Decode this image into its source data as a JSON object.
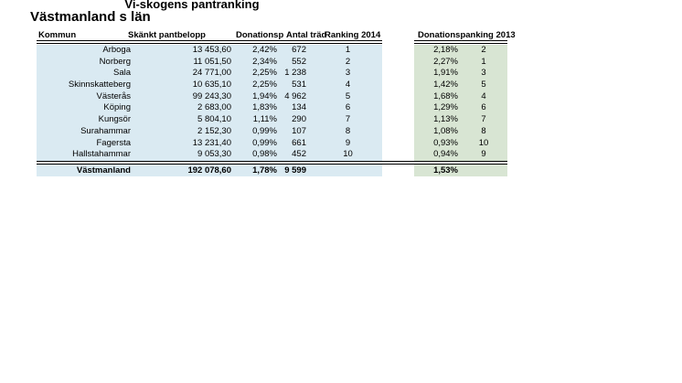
{
  "title": "Vi-skogens pantranking",
  "subtitle": "Västmanland s län",
  "left_table": {
    "headers": {
      "kommun": "Kommun",
      "amount": "Skänkt pantbelopp",
      "percent": "Donationsp",
      "trees": "Antal träd",
      "ranking": "Ranking 2014"
    },
    "rows": [
      {
        "kommun": "Arboga",
        "amount": "13 453,60",
        "percent": "2,42%",
        "trees": "672",
        "rank": "1"
      },
      {
        "kommun": "Norberg",
        "amount": "11 051,50",
        "percent": "2,34%",
        "trees": "552",
        "rank": "2"
      },
      {
        "kommun": "Sala",
        "amount": "24 771,00",
        "percent": "2,25%",
        "trees": "1 238",
        "rank": "3"
      },
      {
        "kommun": "Skinnskatteberg",
        "amount": "10 635,10",
        "percent": "2,25%",
        "trees": "531",
        "rank": "4"
      },
      {
        "kommun": "Västerås",
        "amount": "99 243,30",
        "percent": "1,94%",
        "trees": "4 962",
        "rank": "5"
      },
      {
        "kommun": "Köping",
        "amount": "2 683,00",
        "percent": "1,83%",
        "trees": "134",
        "rank": "6"
      },
      {
        "kommun": "Kungsör",
        "amount": "5 804,10",
        "percent": "1,11%",
        "trees": "290",
        "rank": "7"
      },
      {
        "kommun": "Surahammar",
        "amount": "2 152,30",
        "percent": "0,99%",
        "trees": "107",
        "rank": "8"
      },
      {
        "kommun": "Fagersta",
        "amount": "13 231,40",
        "percent": "0,99%",
        "trees": "661",
        "rank": "9"
      },
      {
        "kommun": "Hallstahammar",
        "amount": "9 053,30",
        "percent": "0,98%",
        "trees": "452",
        "rank": "10"
      }
    ],
    "total": {
      "kommun": "Västmanland",
      "amount": "192 078,60",
      "percent": "1,78%",
      "trees": "9 599",
      "rank": ""
    }
  },
  "right_table": {
    "header": "Donationspanking 2013",
    "rows": [
      {
        "percent": "2,18%",
        "rank": "2"
      },
      {
        "percent": "2,27%",
        "rank": "1"
      },
      {
        "percent": "1,91%",
        "rank": "3"
      },
      {
        "percent": "1,42%",
        "rank": "5"
      },
      {
        "percent": "1,68%",
        "rank": "4"
      },
      {
        "percent": "1,29%",
        "rank": "6"
      },
      {
        "percent": "1,13%",
        "rank": "7"
      },
      {
        "percent": "1,08%",
        "rank": "8"
      },
      {
        "percent": "0,93%",
        "rank": "10"
      },
      {
        "percent": "0,94%",
        "rank": "9"
      }
    ],
    "total": {
      "percent": "1,53%",
      "rank": ""
    }
  },
  "colors": {
    "left_band": "#daeaf2",
    "right_band": "#d8e5d3",
    "rule": "#000000"
  }
}
